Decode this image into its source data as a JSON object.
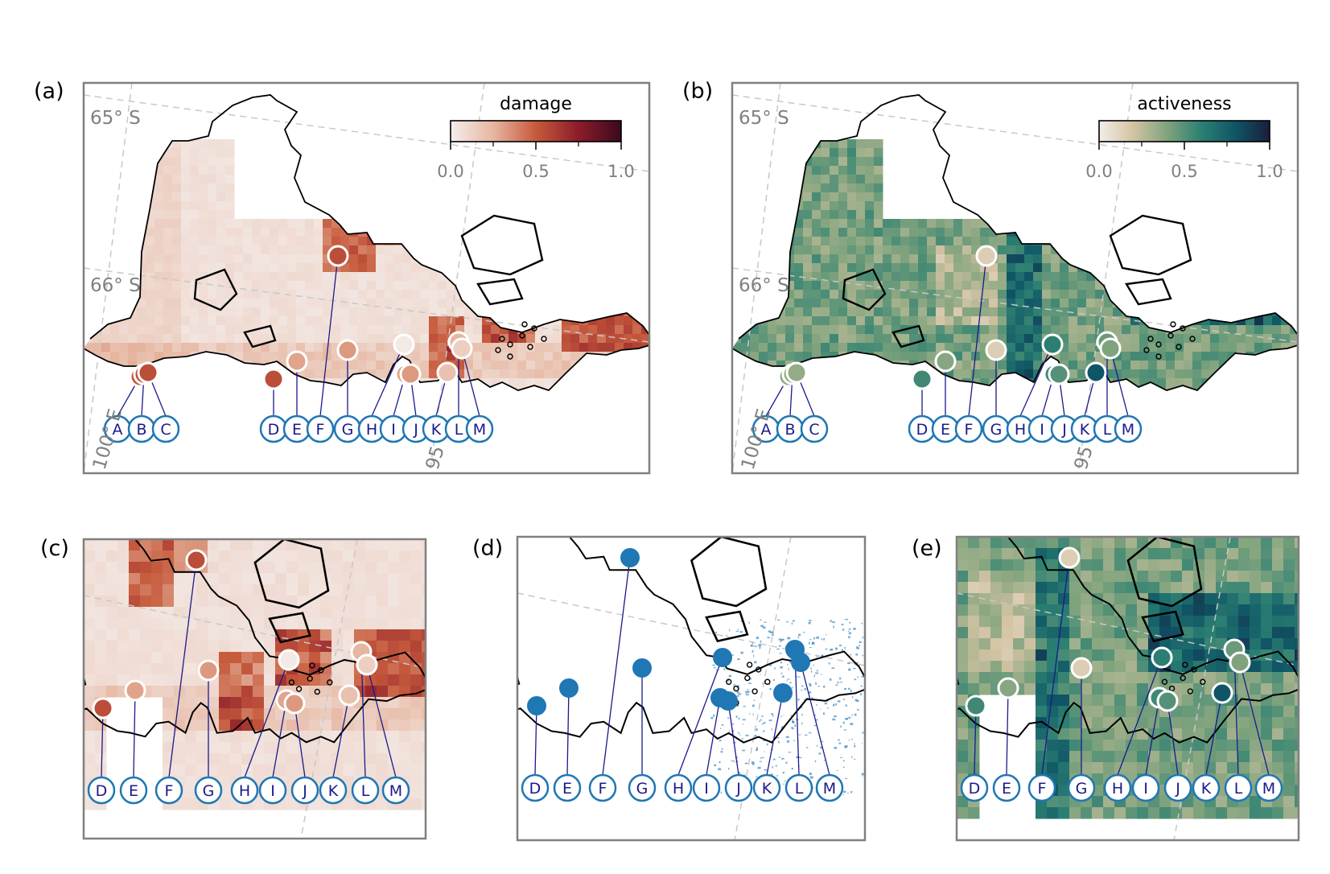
{
  "figure": {
    "panels": [
      {
        "id": "a",
        "letter": "(a)",
        "kind": "damage",
        "colorbar_title": "damage"
      },
      {
        "id": "b",
        "letter": "(b)",
        "kind": "activeness",
        "colorbar_title": "activeness"
      },
      {
        "id": "c",
        "letter": "(c)",
        "kind": "damage"
      },
      {
        "id": "d",
        "letter": "(d)",
        "kind": "points"
      },
      {
        "id": "e",
        "letter": "(e)",
        "kind": "activeness"
      }
    ],
    "graticule_labels": {
      "lat_65": "65° S",
      "lat_66": "66° S",
      "lon_100": "100° E",
      "lon_95": "95"
    },
    "colorbar_ticks": [
      "0.0",
      "0.5",
      "1.0"
    ],
    "colorbar_range": [
      0,
      1
    ],
    "colormaps": {
      "damage": [
        "#f4eeec",
        "#e6b6a0",
        "#c65a3c",
        "#8c1c2c",
        "#3a0a1c"
      ],
      "activeness": [
        "#f2ede8",
        "#d3c3a3",
        "#7fa37d",
        "#2b7f72",
        "#0f5566",
        "#1c1c3a"
      ]
    },
    "site_labels": [
      "A",
      "B",
      "C",
      "D",
      "E",
      "F",
      "G",
      "H",
      "I",
      "J",
      "K",
      "L",
      "M"
    ],
    "site_values": {
      "damage": {
        "A": 0.5,
        "B": 0.55,
        "C": 0.55,
        "D": 0.55,
        "E": 0.3,
        "F": 0.55,
        "G": 0.33,
        "H": 0.02,
        "I": 0.3,
        "J": 0.33,
        "K": 0.2,
        "L": 0.25,
        "M": 0.14
      },
      "activeness": {
        "A": 0.35,
        "B": 0.35,
        "C": 0.35,
        "D": 0.55,
        "E": 0.38,
        "F": 0.15,
        "G": 0.15,
        "H": 0.6,
        "I": 0.55,
        "J": 0.5,
        "K": 0.8,
        "L": 0.45,
        "M": 0.4
      }
    },
    "colors": {
      "frame": "#808080",
      "coast": "#000000",
      "leader": "#1a1a8c",
      "site_ring": "#1f77b4",
      "site_text": "#1a1a8c",
      "points": "#1f77b4",
      "grid": "#c8c8c8"
    }
  }
}
